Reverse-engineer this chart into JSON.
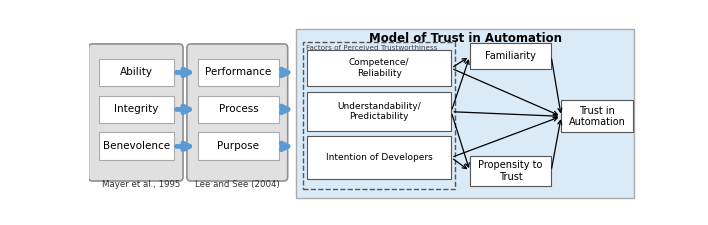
{
  "fig_width": 7.08,
  "fig_height": 2.25,
  "dpi": 100,
  "bg_color": "#ffffff",
  "right_panel_bg": "#daeaf7",
  "blue_arrow_color": "#5b9bd5",
  "left_panel": {
    "group1_items": [
      "Ability",
      "Integrity",
      "Benevolence"
    ],
    "group2_items": [
      "Performance",
      "Process",
      "Purpose"
    ],
    "citation1": "Mayer et al., 1995",
    "citation2": "Lee and See (2004)"
  },
  "right_panel": {
    "title": "Model of Trust in Automation",
    "dashed_label": "Factors of Perceived Trustworthiness",
    "factors": [
      "Competence/\nReliability",
      "Understandability/\nPredictability",
      "Intention of Developers"
    ],
    "factor_text_color": "#000000",
    "nodes": [
      "Familiarity",
      "Trust in\nAutomation",
      "Propensity to\nTrust"
    ]
  }
}
